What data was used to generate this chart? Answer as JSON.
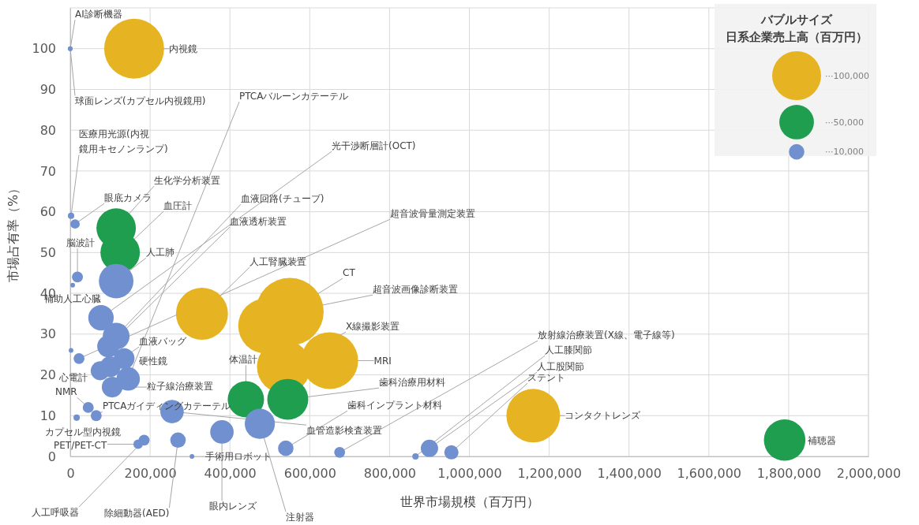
{
  "chart_data": {
    "type": "bubble",
    "xlabel": "世界市場規模（百万円）",
    "ylabel": "市場占有率（%）",
    "legend_title": "バブルサイズ日系企業売上高（百万円）",
    "grid": true,
    "xlim": [
      0,
      2000000
    ],
    "xticks": [
      {
        "value": 0,
        "label": "0"
      },
      {
        "value": 200000,
        "label": "200,000"
      },
      {
        "value": 400000,
        "label": "400,000"
      },
      {
        "value": 600000,
        "label": "600,000"
      },
      {
        "value": 800000,
        "label": "800,000"
      },
      {
        "value": 1000000,
        "label": "1,000,000"
      },
      {
        "value": 1200000,
        "label": "1,200,000"
      },
      {
        "value": 1400000,
        "label": "1,400,000"
      },
      {
        "value": 1600000,
        "label": "1,600,000"
      },
      {
        "value": 1800000,
        "label": "1,800,000"
      },
      {
        "value": 2000000,
        "label": "2,000,000"
      }
    ],
    "ylim": [
      0,
      110
    ],
    "yticks": [
      0,
      10,
      20,
      30,
      40,
      50,
      60,
      70,
      80,
      90,
      100
    ],
    "size_legend": [
      {
        "value": 100000,
        "label": "···100,000"
      },
      {
        "value": 50000,
        "label": "···50,000"
      },
      {
        "value": 10000,
        "label": "···10,000"
      }
    ],
    "series": [
      {
        "color": "#e6b422",
        "x": [
          160000,
          330000,
          490000,
          550000,
          535000,
          650000,
          1160000
        ],
        "values": [
          100,
          35,
          32,
          35.5,
          22,
          23.5,
          10
        ],
        "sizes": [
          150000,
          113000,
          127000,
          192000,
          120000,
          135000,
          120000
        ]
      },
      {
        "color": "#1e9e4e",
        "x": [
          115000,
          125000,
          440000,
          545000,
          1790000
        ],
        "values": [
          56,
          50,
          14,
          14,
          4
        ],
        "sizes": [
          65000,
          65000,
          55000,
          70000,
          72000
        ]
      },
      {
        "color": "#7190cf",
        "x": [
          0,
          0,
          2000,
          12000,
          18000,
          6000,
          115000,
          77000,
          115000,
          95000,
          22000,
          2000,
          135000,
          100000,
          75000,
          145000,
          105000,
          45000,
          65000,
          16000,
          170000,
          185000,
          270000,
          305000,
          380000,
          475000,
          255000,
          540000,
          675000,
          865000,
          900000,
          955000
        ],
        "values": [
          100,
          100,
          59,
          57,
          44,
          42,
          43,
          34,
          29.5,
          27,
          24,
          26,
          24,
          22,
          21,
          19,
          17,
          12,
          10,
          9.5,
          3,
          4,
          4,
          0,
          6,
          8,
          11,
          2,
          1,
          0,
          2,
          1
        ],
        "sizes": [
          900,
          900,
          1700,
          3700,
          5000,
          900,
          50000,
          27000,
          30000,
          20000,
          5000,
          900,
          18000,
          18000,
          15000,
          23000,
          18000,
          5000,
          5000,
          1700,
          3700,
          5000,
          10000,
          900,
          23000,
          38000,
          23000,
          10000,
          5000,
          1700,
          12500,
          8500
        ]
      }
    ],
    "annotations": [
      {
        "text": "AI診断機器",
        "x": 0,
        "y": 100
      },
      {
        "text": "球面レンズ(カプセル内視鏡用)",
        "x": 0,
        "y": 100
      },
      {
        "text": "医療用光源(内視鏡用キセノンランプ)",
        "x": 2000,
        "y": 59
      },
      {
        "text": "眼底カメラ",
        "x": 12000,
        "y": 57
      },
      {
        "text": "脳波計",
        "x": 18000,
        "y": 44
      },
      {
        "text": "補助人工心臓",
        "x": 6000,
        "y": 42
      },
      {
        "text": "生化学分析装置",
        "x": 115000,
        "y": 56
      },
      {
        "text": "血圧計",
        "x": 125000,
        "y": 50
      },
      {
        "text": "人工肺",
        "x": 115000,
        "y": 43
      },
      {
        "text": "PTCAバルーンカテーテル",
        "x": 145000,
        "y": 19
      },
      {
        "text": "光干渉断層計(OCT)",
        "x": 77000,
        "y": 34
      },
      {
        "text": "血液回路(チューブ)",
        "x": 115000,
        "y": 29.5
      },
      {
        "text": "血液透析装置",
        "x": 95000,
        "y": 27
      },
      {
        "text": "超音波骨量測定装置",
        "x": 22000,
        "y": 24
      },
      {
        "text": "人工腎臓装置",
        "x": 330000,
        "y": 35
      },
      {
        "text": "CT",
        "x": 490000,
        "y": 32
      },
      {
        "text": "超音波画像診断装置",
        "x": 550000,
        "y": 35.5
      },
      {
        "text": "X線撮影装置",
        "x": 535000,
        "y": 22
      },
      {
        "text": "MRI",
        "x": 650000,
        "y": 23.5
      },
      {
        "text": "血液バッグ",
        "x": 100000,
        "y": 22
      },
      {
        "text": "硬性鏡",
        "x": 135000,
        "y": 24
      },
      {
        "text": "心電計",
        "x": 75000,
        "y": 21
      },
      {
        "text": "粒子線治療装置",
        "x": 105000,
        "y": 17
      },
      {
        "text": "体温計",
        "x": 440000,
        "y": 14
      },
      {
        "text": "歯科治療用材料",
        "x": 545000,
        "y": 14
      },
      {
        "text": "歯科インプラント材料",
        "x": 540000,
        "y": 2
      },
      {
        "text": "NMR",
        "x": 45000,
        "y": 12
      },
      {
        "text": "PTCAガイディングカテーテル",
        "x": 65000,
        "y": 10
      },
      {
        "text": "カプセル型内視鏡",
        "x": 16000,
        "y": 9.5
      },
      {
        "text": "PET/PET-CT",
        "x": 170000,
        "y": 3
      },
      {
        "text": "人工呼吸器",
        "x": 185000,
        "y": 4
      },
      {
        "text": "除細動器(AED)",
        "x": 270000,
        "y": 4
      },
      {
        "text": "手術用ロボット",
        "x": 305000,
        "y": 0
      },
      {
        "text": "眼内レンズ",
        "x": 380000,
        "y": 6
      },
      {
        "text": "注射器",
        "x": 475000,
        "y": 8
      },
      {
        "text": "血管造影検査装置",
        "x": 255000,
        "y": 11
      },
      {
        "text": "放射線治療装置(X線、電子線等)",
        "x": 675000,
        "y": 1
      },
      {
        "text": "人工膝関節",
        "x": 865000,
        "y": 0
      },
      {
        "text": "人工股関節",
        "x": 900000,
        "y": 2
      },
      {
        "text": "ステント",
        "x": 955000,
        "y": 1
      },
      {
        "text": "コンタクトレンズ",
        "x": 1160000,
        "y": 10
      },
      {
        "text": "内視鏡",
        "x": 160000,
        "y": 100
      },
      {
        "text": "補聴器",
        "x": 1790000,
        "y": 4
      }
    ]
  }
}
